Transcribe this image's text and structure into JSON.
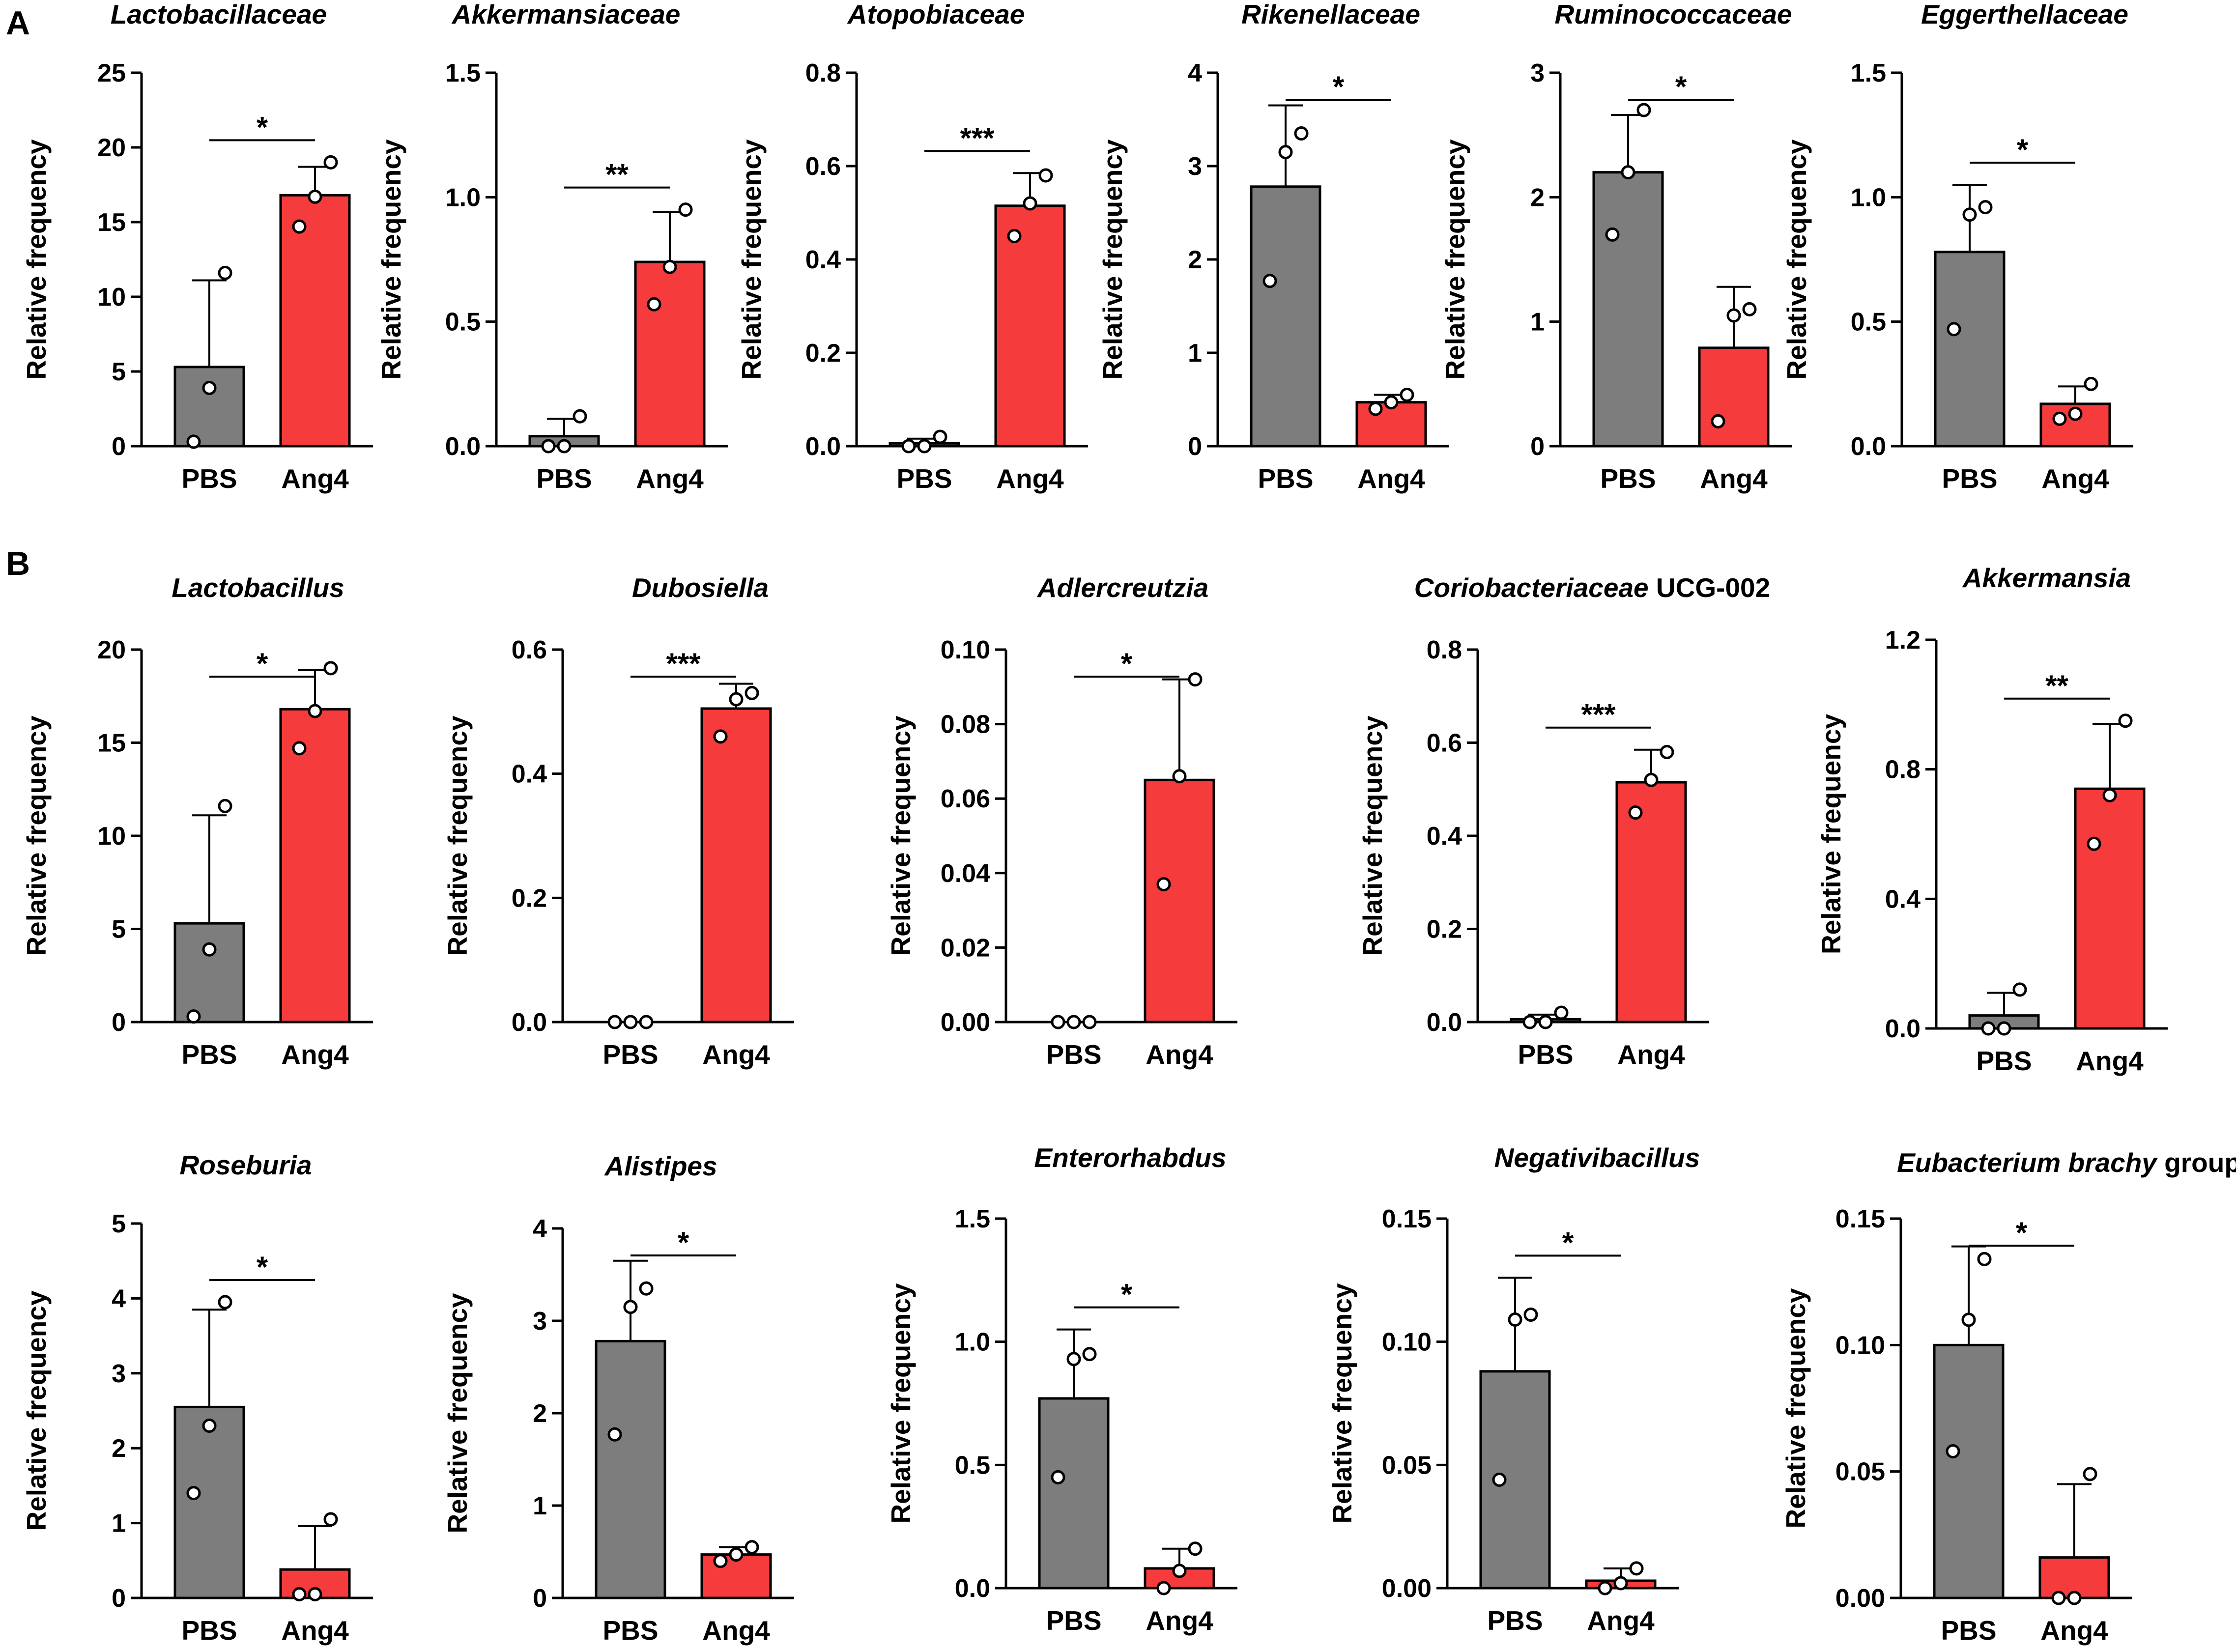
{
  "panels": [
    {
      "label": "A"
    },
    {
      "label": "B"
    }
  ],
  "colors": {
    "PBS": "#7d7d7d",
    "Ang4": "#f53b3b",
    "axis": "#000000",
    "point_fill": "#ffffff"
  },
  "chart_data": [
    {
      "type": "bar",
      "panel": "A",
      "title": "Lactobacillaceae",
      "title_suffix": "",
      "ylabel": "Relative frequency",
      "categories": [
        "PBS",
        "Ang4"
      ],
      "values": [
        5.3,
        16.8
      ],
      "sd": [
        5.8,
        1.9
      ],
      "points": [
        [
          0.3,
          3.9,
          11.6
        ],
        [
          14.7,
          16.7,
          19.0
        ]
      ],
      "ylim": [
        0,
        25
      ],
      "yticks": [
        "0",
        "5",
        "10",
        "15",
        "20",
        "25"
      ],
      "significance": "*"
    },
    {
      "type": "bar",
      "panel": "A",
      "title": "Akkermansiaceae",
      "title_suffix": "",
      "ylabel": "Relative frequency",
      "categories": [
        "PBS",
        "Ang4"
      ],
      "values": [
        0.04,
        0.74
      ],
      "sd": [
        0.07,
        0.2
      ],
      "points": [
        [
          0.0,
          0.0,
          0.12
        ],
        [
          0.57,
          0.72,
          0.95
        ]
      ],
      "ylim": [
        0,
        1.5
      ],
      "yticks": [
        "0.0",
        "0.5",
        "1.0",
        "1.5"
      ],
      "significance": "**"
    },
    {
      "type": "bar",
      "panel": "A",
      "title": "Atopobiaceae",
      "title_suffix": "",
      "ylabel": "Relative frequency",
      "categories": [
        "PBS",
        "Ang4"
      ],
      "values": [
        0.006,
        0.515
      ],
      "sd": [
        0.01,
        0.07
      ],
      "points": [
        [
          0.0,
          0.0,
          0.02
        ],
        [
          0.45,
          0.52,
          0.58
        ]
      ],
      "ylim": [
        0,
        0.8
      ],
      "yticks": [
        "0.0",
        "0.2",
        "0.4",
        "0.6",
        "0.8"
      ],
      "significance": "***"
    },
    {
      "type": "bar",
      "panel": "A",
      "title": "Rikenellaceae",
      "title_suffix": "",
      "ylabel": "Relative frequency",
      "categories": [
        "PBS",
        "Ang4"
      ],
      "values": [
        2.78,
        0.47
      ],
      "sd": [
        0.87,
        0.08
      ],
      "points": [
        [
          1.77,
          3.15,
          3.35
        ],
        [
          0.4,
          0.47,
          0.55
        ]
      ],
      "ylim": [
        0,
        4
      ],
      "yticks": [
        "0",
        "1",
        "2",
        "3",
        "4"
      ],
      "significance": "*"
    },
    {
      "type": "bar",
      "panel": "A",
      "title": "Ruminococcaceae",
      "title_suffix": "",
      "ylabel": "Relative frequency",
      "categories": [
        "PBS",
        "Ang4"
      ],
      "values": [
        2.2,
        0.79
      ],
      "sd": [
        0.46,
        0.49
      ],
      "points": [
        [
          1.7,
          2.2,
          2.7
        ],
        [
          0.2,
          1.05,
          1.1
        ]
      ],
      "ylim": [
        0,
        3
      ],
      "yticks": [
        "0",
        "1",
        "2",
        "3"
      ],
      "significance": "*"
    },
    {
      "type": "bar",
      "panel": "A",
      "title": "Eggerthellaceae",
      "title_suffix": "",
      "ylabel": "Relative frequency",
      "categories": [
        "PBS",
        "Ang4"
      ],
      "values": [
        0.78,
        0.17
      ],
      "sd": [
        0.27,
        0.07
      ],
      "points": [
        [
          0.47,
          0.93,
          0.96
        ],
        [
          0.11,
          0.13,
          0.25
        ]
      ],
      "ylim": [
        0,
        1.5
      ],
      "yticks": [
        "0.0",
        "0.5",
        "1.0",
        "1.5"
      ],
      "significance": "*"
    },
    {
      "type": "bar",
      "panel": "B",
      "title": "Lactobacillus",
      "title_suffix": "",
      "ylabel": "Relative frequency",
      "categories": [
        "PBS",
        "Ang4"
      ],
      "values": [
        5.3,
        16.8
      ],
      "sd": [
        5.8,
        2.1
      ],
      "points": [
        [
          0.3,
          3.9,
          11.6
        ],
        [
          14.7,
          16.7,
          19.0
        ]
      ],
      "ylim": [
        0,
        20
      ],
      "yticks": [
        "0",
        "5",
        "10",
        "15",
        "20"
      ],
      "significance": "*"
    },
    {
      "type": "bar",
      "panel": "B",
      "title": "Dubosiella",
      "title_suffix": "",
      "ylabel": "Relative frequency",
      "categories": [
        "PBS",
        "Ang4"
      ],
      "values": [
        0.0,
        0.505
      ],
      "sd": [
        0.0,
        0.04
      ],
      "points": [
        [
          0.0,
          0.0,
          0.0
        ],
        [
          0.46,
          0.52,
          0.53
        ]
      ],
      "ylim": [
        0,
        0.6
      ],
      "yticks": [
        "0.0",
        "0.2",
        "0.4",
        "0.6"
      ],
      "significance": "***"
    },
    {
      "type": "bar",
      "panel": "B",
      "title": "Adlercreutzia",
      "title_suffix": "",
      "ylabel": "Relative frequency",
      "categories": [
        "PBS",
        "Ang4"
      ],
      "values": [
        0.0,
        0.065
      ],
      "sd": [
        0.0,
        0.027
      ],
      "points": [
        [
          0.0,
          0.0,
          0.0
        ],
        [
          0.037,
          0.066,
          0.092
        ]
      ],
      "ylim": [
        0,
        0.1
      ],
      "yticks": [
        "0.00",
        "0.02",
        "0.04",
        "0.06",
        "0.08",
        "0.10"
      ],
      "significance": "*"
    },
    {
      "type": "bar",
      "panel": "B",
      "title": "Coriobacteriaceae",
      "title_suffix": " UCG-002",
      "ylabel": "Relative frequency",
      "categories": [
        "PBS",
        "Ang4"
      ],
      "values": [
        0.006,
        0.515
      ],
      "sd": [
        0.01,
        0.07
      ],
      "points": [
        [
          0.0,
          0.0,
          0.02
        ],
        [
          0.45,
          0.52,
          0.58
        ]
      ],
      "ylim": [
        0,
        0.8
      ],
      "yticks": [
        "0.0",
        "0.2",
        "0.4",
        "0.6",
        "0.8"
      ],
      "significance": "***"
    },
    {
      "type": "bar",
      "panel": "B",
      "title": "Akkermansia",
      "title_suffix": "",
      "ylabel": "Relative frequency",
      "categories": [
        "PBS",
        "Ang4"
      ],
      "values": [
        0.04,
        0.74
      ],
      "sd": [
        0.07,
        0.2
      ],
      "points": [
        [
          0.0,
          0.0,
          0.12
        ],
        [
          0.57,
          0.72,
          0.95
        ]
      ],
      "ylim": [
        0,
        1.2
      ],
      "yticks": [
        "0.0",
        "0.4",
        "0.8",
        "1.2"
      ],
      "significance": "**"
    },
    {
      "type": "bar",
      "panel": "B",
      "title": "Roseburia",
      "title_suffix": "",
      "ylabel": "Relative frequency",
      "categories": [
        "PBS",
        "Ang4"
      ],
      "values": [
        2.55,
        0.38
      ],
      "sd": [
        1.3,
        0.58
      ],
      "points": [
        [
          1.4,
          2.3,
          3.95
        ],
        [
          0.05,
          0.05,
          1.05
        ]
      ],
      "ylim": [
        0,
        5
      ],
      "yticks": [
        "0",
        "1",
        "2",
        "3",
        "4",
        "5"
      ],
      "significance": "*"
    },
    {
      "type": "bar",
      "panel": "B",
      "title": "Alistipes",
      "title_suffix": "",
      "ylabel": "Relative frequency",
      "categories": [
        "PBS",
        "Ang4"
      ],
      "values": [
        2.78,
        0.47
      ],
      "sd": [
        0.87,
        0.08
      ],
      "points": [
        [
          1.77,
          3.15,
          3.35
        ],
        [
          0.4,
          0.47,
          0.55
        ]
      ],
      "ylim": [
        0,
        4
      ],
      "yticks": [
        "0",
        "1",
        "2",
        "3",
        "4"
      ],
      "significance": "*"
    },
    {
      "type": "bar",
      "panel": "B",
      "title": "Enterorhabdus",
      "title_suffix": "",
      "ylabel": "Relative frequency",
      "categories": [
        "PBS",
        "Ang4"
      ],
      "values": [
        0.77,
        0.08
      ],
      "sd": [
        0.28,
        0.08
      ],
      "points": [
        [
          0.45,
          0.93,
          0.95
        ],
        [
          0.0,
          0.07,
          0.16
        ]
      ],
      "ylim": [
        0,
        1.5
      ],
      "yticks": [
        "0.0",
        "0.5",
        "1.0",
        "1.5"
      ],
      "significance": "*"
    },
    {
      "type": "bar",
      "panel": "B",
      "title": "Negativibacillus",
      "title_suffix": "",
      "ylabel": "Relative frequency",
      "categories": [
        "PBS",
        "Ang4"
      ],
      "values": [
        0.088,
        0.003
      ],
      "sd": [
        0.038,
        0.005
      ],
      "points": [
        [
          0.044,
          0.109,
          0.111
        ],
        [
          0.0,
          0.002,
          0.008
        ]
      ],
      "ylim": [
        0,
        0.15
      ],
      "yticks": [
        "0.00",
        "0.05",
        "0.10",
        "0.15"
      ],
      "significance": "*"
    },
    {
      "type": "bar",
      "panel": "B",
      "title": "Eubacterium brachy",
      "title_suffix": " group",
      "ylabel": "Relative frequency",
      "categories": [
        "PBS",
        "Ang4"
      ],
      "values": [
        0.1,
        0.016
      ],
      "sd": [
        0.039,
        0.029
      ],
      "points": [
        [
          0.058,
          0.11,
          0.134
        ],
        [
          0.0,
          0.0,
          0.049
        ]
      ],
      "ylim": [
        0,
        0.15
      ],
      "yticks": [
        "0.00",
        "0.05",
        "0.10",
        "0.15"
      ],
      "significance": "*"
    }
  ]
}
